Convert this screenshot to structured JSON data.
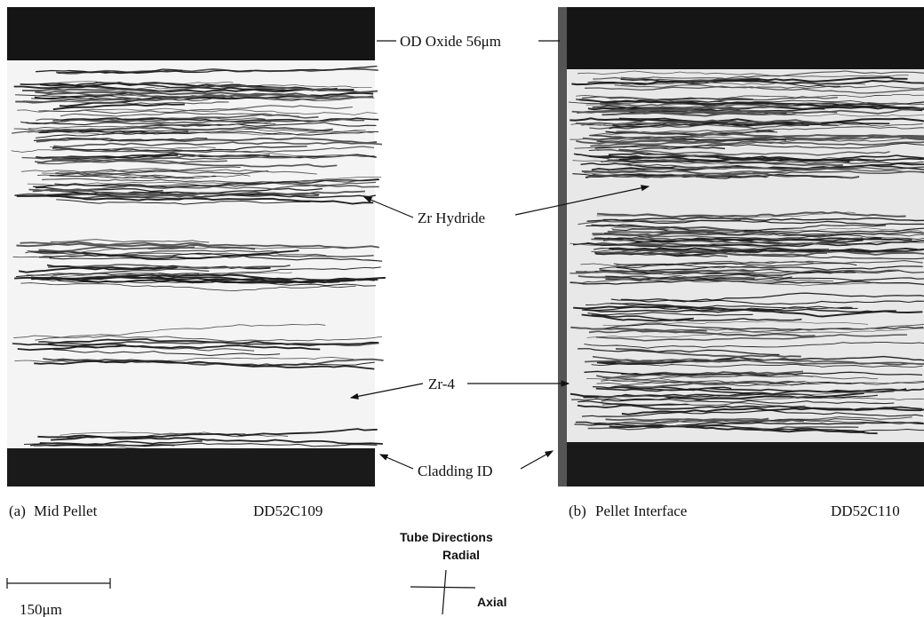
{
  "panels": [
    {
      "label": "(a)",
      "title": "Mid Pellet",
      "id": "DD52C109"
    },
    {
      "label": "(b)",
      "title": "Pellet Interface",
      "id": "DD52C110"
    }
  ],
  "annotations": {
    "oxide": "OD Oxide 56μm",
    "hydride": "Zr Hydride",
    "matrix": "Zr-4",
    "cladding": "Cladding ID"
  },
  "orientation": {
    "title": "Tube Directions",
    "radial": "Radial",
    "axial": "Axial"
  },
  "scale_bar": "150μm"
}
